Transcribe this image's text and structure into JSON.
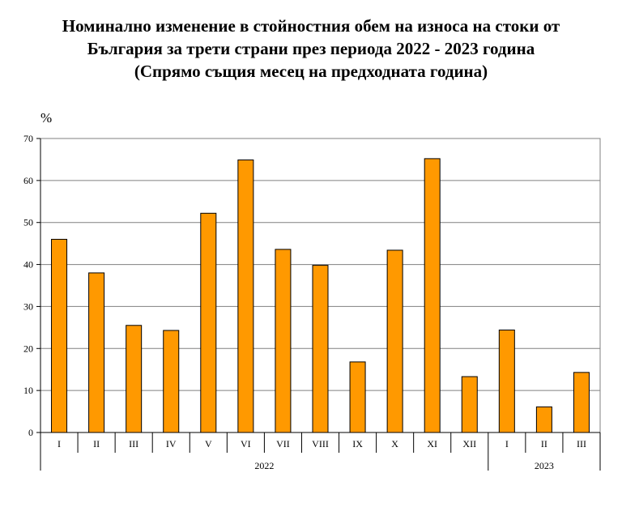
{
  "chart_data": {
    "type": "bar",
    "title_lines": [
      "Номинално изменение в стойностния обем на износа на стоки от",
      "България за трети страни през периода 2022 - 2023 година",
      "(Спрямо същия месец на предходната година)"
    ],
    "ylabel": "%",
    "ylim": [
      0,
      70
    ],
    "yticks": [
      0,
      10,
      20,
      30,
      40,
      50,
      60,
      70
    ],
    "categories": [
      "I",
      "II",
      "III",
      "IV",
      "V",
      "VI",
      "VII",
      "VIII",
      "IX",
      "X",
      "XI",
      "XII",
      "I",
      "II",
      "III"
    ],
    "years": [
      {
        "label": "2022",
        "count": 12
      },
      {
        "label": "2023",
        "count": 3
      }
    ],
    "values": [
      46.0,
      38.0,
      25.5,
      24.3,
      52.2,
      64.9,
      43.6,
      39.8,
      16.8,
      43.4,
      65.2,
      13.3,
      24.4,
      6.1,
      14.3
    ],
    "grid": true,
    "bar_color": "#FF9900"
  }
}
